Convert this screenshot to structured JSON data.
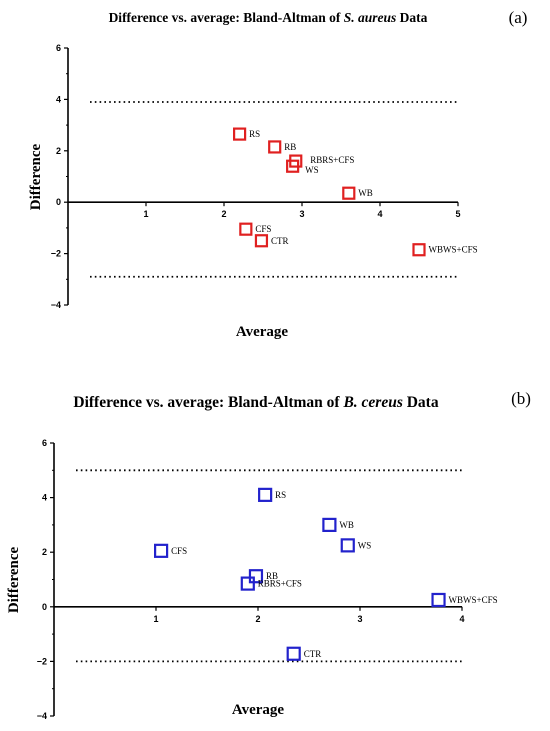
{
  "chart_data": [
    {
      "type": "scatter",
      "panel_label": "(a)",
      "title": {
        "prefix": "Difference vs. average: Bland-Altman of ",
        "italic": "S. aureus",
        "suffix": " Data"
      },
      "xlabel": "Average",
      "ylabel": "Difference",
      "xlim": [
        0,
        5
      ],
      "ylim": [
        -4,
        6
      ],
      "x_ticks": [
        1,
        2,
        3,
        4,
        5
      ],
      "y_ticks": [
        -4,
        -2,
        0,
        2,
        4,
        6
      ],
      "limits_of_agreement": [
        3.9,
        -2.9
      ],
      "marker_color": "#e02020",
      "grid": false,
      "points": [
        {
          "label": "RS",
          "x": 2.2,
          "y": 2.65
        },
        {
          "label": "RB",
          "x": 2.65,
          "y": 2.15
        },
        {
          "label": "RBRS+CFS",
          "x": 2.92,
          "y": 1.6
        },
        {
          "label": "WS",
          "x": 2.88,
          "y": 1.4
        },
        {
          "label": "WB",
          "x": 3.6,
          "y": 0.35
        },
        {
          "label": "CFS",
          "x": 2.28,
          "y": -1.05
        },
        {
          "label": "CTR",
          "x": 2.48,
          "y": -1.5
        },
        {
          "label": "WBWS+CFS",
          "x": 4.5,
          "y": -1.85
        }
      ]
    },
    {
      "type": "scatter",
      "panel_label": "(b)",
      "title": {
        "prefix": "Difference vs. average: Bland-Altman of ",
        "italic": "B. cereus",
        "suffix": " Data"
      },
      "xlabel": "Average",
      "ylabel": "Difference",
      "xlim": [
        0,
        4
      ],
      "ylim": [
        -4,
        6
      ],
      "x_ticks": [
        1,
        2,
        3,
        4
      ],
      "y_ticks": [
        -4,
        -2,
        0,
        2,
        4,
        6
      ],
      "limits_of_agreement": [
        5.0,
        -2.0
      ],
      "marker_color": "#2222cc",
      "grid": false,
      "points": [
        {
          "label": "RS",
          "x": 2.07,
          "y": 4.1
        },
        {
          "label": "WB",
          "x": 2.7,
          "y": 3.0
        },
        {
          "label": "WS",
          "x": 2.88,
          "y": 2.25
        },
        {
          "label": "CFS",
          "x": 1.05,
          "y": 2.05
        },
        {
          "label": "RB",
          "x": 1.98,
          "y": 1.12
        },
        {
          "label": "RBRS+CFS",
          "x": 1.9,
          "y": 0.85
        },
        {
          "label": "WBWS+CFS",
          "x": 3.77,
          "y": 0.25
        },
        {
          "label": "CTR",
          "x": 2.35,
          "y": -1.72
        }
      ]
    }
  ]
}
